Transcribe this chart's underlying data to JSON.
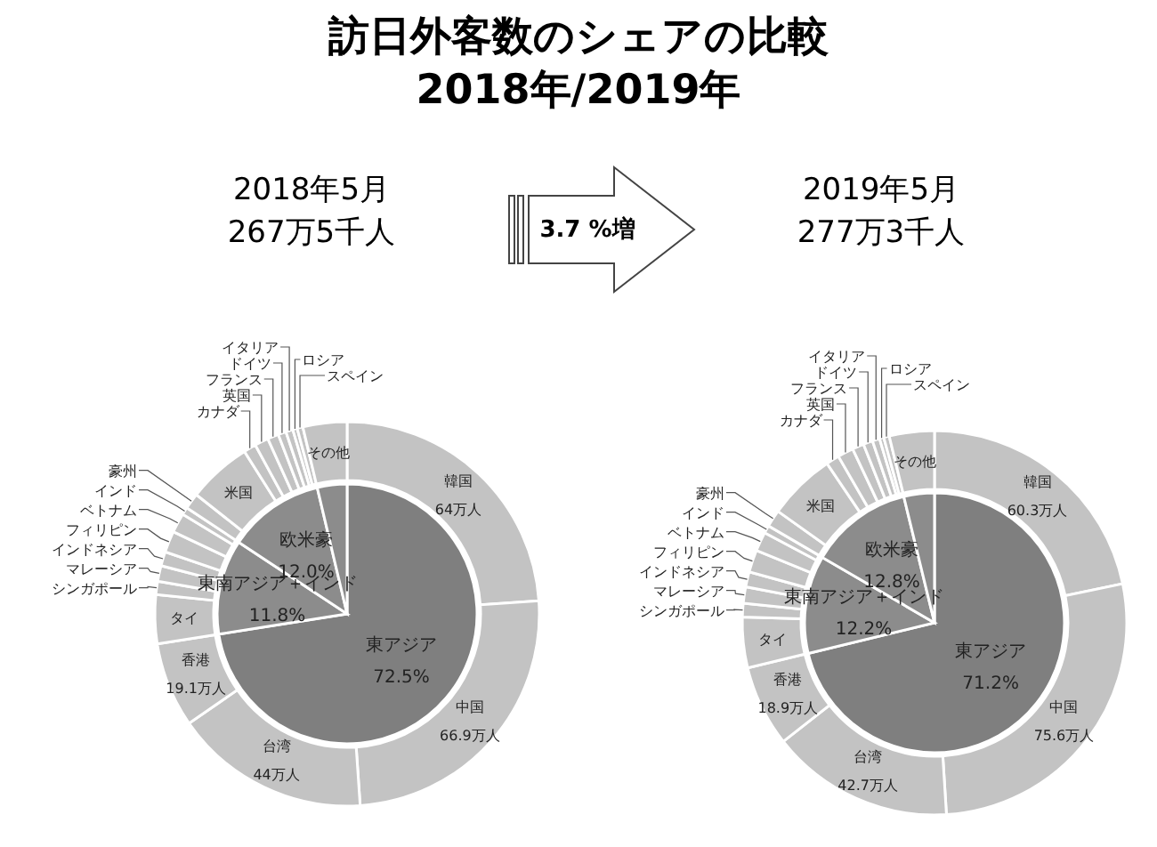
{
  "chart_data": [
    {
      "type": "pie",
      "title": "訪日外客数のシェアの比較\n2018年/2019年",
      "subtitle": "2018年5月\n267万5千人",
      "annotations": [
        "3.7 %増"
      ],
      "categories": [
        "東アジア",
        "東南アジア＋インド",
        "欧米豪",
        null
      ],
      "values": [
        72.5,
        11.8,
        12.0,
        3.7
      ],
      "value_labels": [
        "72.5%",
        "11.8%",
        "12.0%",
        null
      ],
      "colors": [
        "#7f7f7f",
        "#8c8c8c",
        "#8c8c8c",
        "#8c8c8c"
      ]
    },
    {
      "type": "donut",
      "categories": [
        "韓国",
        "中国",
        "台湾",
        "香港",
        "タイ",
        "シンガポール",
        "マレーシア",
        "インドネシア",
        "フィリピン",
        "ベトナム",
        "インド",
        "豪州",
        "米国",
        "カナダ",
        "英国",
        "フランス",
        "ドイツ",
        "イタリア",
        "ロシア",
        "スペイン",
        "その他"
      ],
      "values": [
        64,
        66.9,
        44,
        19.1,
        11.0,
        3.0,
        3.5,
        3.2,
        4.8,
        4.4,
        1.7,
        3.6,
        14.4,
        2.8,
        3.1,
        2.5,
        1.8,
        1.6,
        1.0,
        1.3,
        9.9
      ],
      "value_labels": [
        "64万人",
        "66.9万人",
        "44万人",
        "19.1万人",
        null,
        null,
        null,
        null,
        null,
        null,
        null,
        null,
        null,
        null,
        null,
        null,
        null,
        null,
        null,
        null,
        null
      ],
      "colors": [
        "#c3c3c3",
        "#c3c3c3",
        "#c3c3c3",
        "#c3c3c3",
        "#c3c3c3",
        "#c3c3c3",
        "#c3c3c3",
        "#c3c3c3",
        "#c3c3c3",
        "#c3c3c3",
        "#c3c3c3",
        "#c3c3c3",
        "#c3c3c3",
        "#c3c3c3",
        "#c3c3c3",
        "#c3c3c3",
        "#c3c3c3",
        "#c3c3c3",
        "#c3c3c3",
        "#c3c3c3",
        "#c3c3c3"
      ]
    },
    {
      "type": "pie",
      "subtitle": "2019年5月\n277万3千人",
      "categories": [
        "東アジア",
        "東南アジア＋インド",
        "欧米豪",
        null
      ],
      "values": [
        71.2,
        12.2,
        12.8,
        3.8
      ],
      "value_labels": [
        "71.2%",
        "12.2%",
        "12.8%",
        null
      ],
      "colors": [
        "#7f7f7f",
        "#8c8c8c",
        "#8c8c8c",
        "#8c8c8c"
      ]
    },
    {
      "type": "donut",
      "categories": [
        "韓国",
        "中国",
        "台湾",
        "香港",
        "タイ",
        "シンガポール",
        "マレーシア",
        "インドネシア",
        "フィリピン",
        "ベトナム",
        "インド",
        "豪州",
        "米国",
        "カナダ",
        "英国",
        "フランス",
        "ドイツ",
        "イタリア",
        "ロシア",
        "スペイン",
        "その他"
      ],
      "values": [
        60.3,
        75.6,
        42.7,
        18.9,
        11.8,
        3.2,
        3.8,
        3.5,
        5.2,
        4.5,
        1.8,
        4.0,
        15.8,
        3.1,
        3.7,
        2.7,
        2.2,
        1.7,
        1.0,
        1.3,
        10.5
      ],
      "value_labels": [
        "60.3万人",
        "75.6万人",
        "42.7万人",
        "18.9万人",
        null,
        null,
        null,
        null,
        null,
        null,
        null,
        null,
        null,
        null,
        null,
        null,
        null,
        null,
        null,
        null,
        null
      ],
      "colors": [
        "#c3c3c3",
        "#c3c3c3",
        "#c3c3c3",
        "#c3c3c3",
        "#c3c3c3",
        "#c3c3c3",
        "#c3c3c3",
        "#c3c3c3",
        "#c3c3c3",
        "#c3c3c3",
        "#c3c3c3",
        "#c3c3c3",
        "#c3c3c3",
        "#c3c3c3",
        "#c3c3c3",
        "#c3c3c3",
        "#c3c3c3",
        "#c3c3c3",
        "#c3c3c3",
        "#c3c3c3",
        "#c3c3c3"
      ]
    }
  ]
}
